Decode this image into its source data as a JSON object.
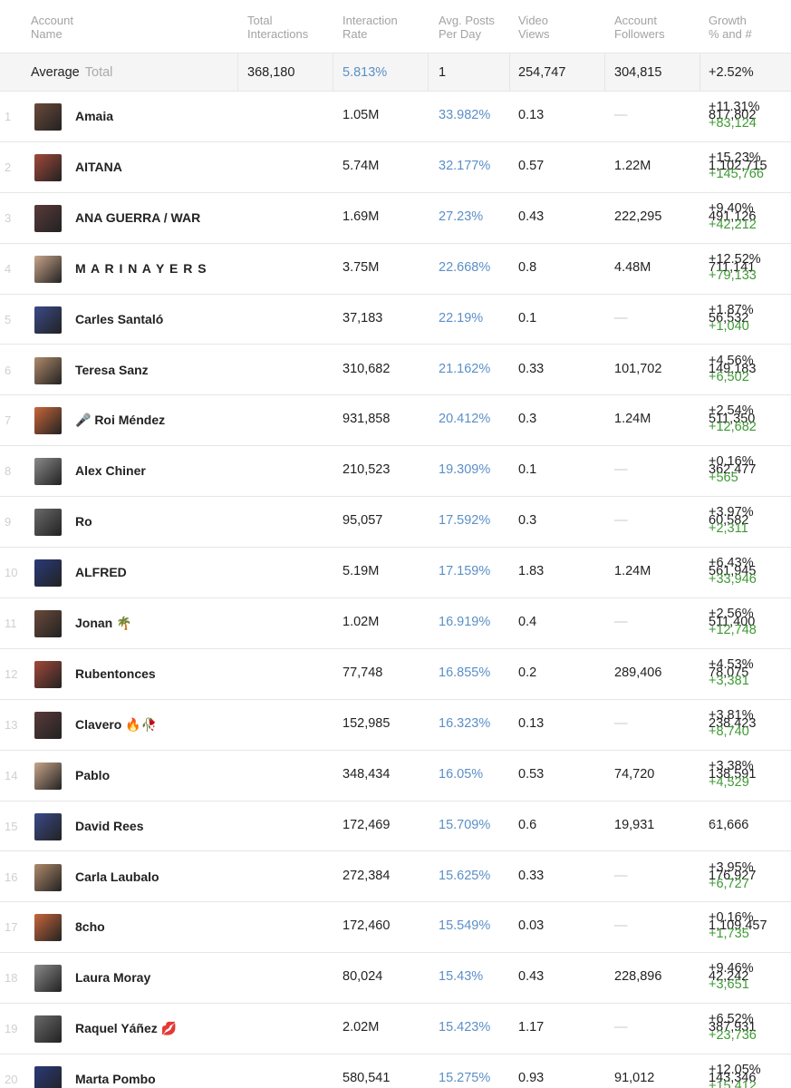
{
  "table": {
    "headers": [
      [
        "Account",
        "Name"
      ],
      [
        "Total",
        "Interactions"
      ],
      [
        "Interaction",
        "Rate"
      ],
      [
        "Avg. Posts",
        "Per Day"
      ],
      [
        "Video",
        "Views"
      ],
      [
        "Account",
        "Followers"
      ],
      [
        "Growth",
        "% and #"
      ]
    ],
    "average": {
      "label": "Average",
      "sublabel": "Total",
      "cells": [
        "368,180",
        "5.813%",
        "1",
        "254,747",
        "304,815",
        "+2.52%"
      ]
    },
    "rows": [
      {
        "rank": 1,
        "name": "Amaia",
        "cells": [
          "1.05M",
          "33.982%",
          "0.13",
          "—",
          "817,802"
        ],
        "growth": [
          "+11.31%",
          "+83,124"
        ]
      },
      {
        "rank": 2,
        "name": "AITANA",
        "cells": [
          "5.74M",
          "32.177%",
          "0.57",
          "1.22M",
          "1,102,715"
        ],
        "growth": [
          "+15.23%",
          "+145,766"
        ]
      },
      {
        "rank": 3,
        "name": "ANA GUERRA / WAR",
        "cells": [
          "1.69M",
          "27.23%",
          "0.43",
          "222,295",
          "491,126"
        ],
        "growth": [
          "+9.40%",
          "+42,212"
        ]
      },
      {
        "rank": 4,
        "name": "M A R I N A Y E R S",
        "cells": [
          "3.75M",
          "22.668%",
          "0.8",
          "4.48M",
          "711,141"
        ],
        "growth": [
          "+12.52%",
          "+79,133"
        ]
      },
      {
        "rank": 5,
        "name": "Carles Santaló",
        "cells": [
          "37,183",
          "22.19%",
          "0.1",
          "—",
          "56,532"
        ],
        "growth": [
          "+1.87%",
          "+1,040"
        ]
      },
      {
        "rank": 6,
        "name": "Teresa Sanz",
        "cells": [
          "310,682",
          "21.162%",
          "0.33",
          "101,702",
          "149,183"
        ],
        "growth": [
          "+4.56%",
          "+6,502"
        ]
      },
      {
        "rank": 7,
        "name": "🎤 Roi Méndez",
        "cells": [
          "931,858",
          "20.412%",
          "0.3",
          "1.24M",
          "511,350"
        ],
        "growth": [
          "+2.54%",
          "+12,682"
        ]
      },
      {
        "rank": 8,
        "name": "Alex Chiner",
        "cells": [
          "210,523",
          "19.309%",
          "0.1",
          "—",
          "362,477"
        ],
        "growth": [
          "+0.16%",
          "+565"
        ]
      },
      {
        "rank": 9,
        "name": "Ro",
        "cells": [
          "95,057",
          "17.592%",
          "0.3",
          "—",
          "60,582"
        ],
        "growth": [
          "+3.97%",
          "+2,311"
        ]
      },
      {
        "rank": 10,
        "name": "ALFRED",
        "cells": [
          "5.19M",
          "17.159%",
          "1.83",
          "1.24M",
          "561,945"
        ],
        "growth": [
          "+6.43%",
          "+33,946"
        ]
      },
      {
        "rank": 11,
        "name": "Jonan 🌴",
        "cells": [
          "1.02M",
          "16.919%",
          "0.4",
          "—",
          "511,400"
        ],
        "growth": [
          "+2.56%",
          "+12,748"
        ]
      },
      {
        "rank": 12,
        "name": "Rubentonces",
        "cells": [
          "77,748",
          "16.855%",
          "0.2",
          "289,406",
          "78,075"
        ],
        "growth": [
          "+4.53%",
          "+3,381"
        ]
      },
      {
        "rank": 13,
        "name": "Clavero 🔥🥀",
        "cells": [
          "152,985",
          "16.323%",
          "0.13",
          "—",
          "238,423"
        ],
        "growth": [
          "+3.81%",
          "+8,740"
        ]
      },
      {
        "rank": 14,
        "name": "Pablo",
        "cells": [
          "348,434",
          "16.05%",
          "0.53",
          "74,720",
          "138,591"
        ],
        "growth": [
          "+3.38%",
          "+4,529"
        ]
      },
      {
        "rank": 15,
        "name": "David Rees",
        "cells": [
          "172,469",
          "15.709%",
          "0.6",
          "19,931",
          "61,666"
        ],
        "growth": [
          "—"
        ]
      },
      {
        "rank": 16,
        "name": "Carla Laubalo",
        "cells": [
          "272,384",
          "15.625%",
          "0.33",
          "—",
          "176,927"
        ],
        "growth": [
          "+3.95%",
          "+6,727"
        ]
      },
      {
        "rank": 17,
        "name": "8cho",
        "cells": [
          "172,460",
          "15.549%",
          "0.03",
          "—",
          "1,109,457"
        ],
        "growth": [
          "+0.16%",
          "+1,735"
        ]
      },
      {
        "rank": 18,
        "name": "Laura Moray",
        "cells": [
          "80,024",
          "15.43%",
          "0.43",
          "228,896",
          "42,242"
        ],
        "growth": [
          "+9.46%",
          "+3,651"
        ]
      },
      {
        "rank": 19,
        "name": "Raquel Yáñez 💋",
        "cells": [
          "2.02M",
          "15.423%",
          "1.17",
          "—",
          "387,931"
        ],
        "growth": [
          "+6.52%",
          "+23,736"
        ]
      },
      {
        "rank": 20,
        "name": "Marta Pombo",
        "cells": [
          "580,541",
          "15.275%",
          "0.93",
          "91,012",
          "143,346"
        ],
        "growth": [
          "+12.05%",
          "+15,412"
        ]
      }
    ]
  }
}
